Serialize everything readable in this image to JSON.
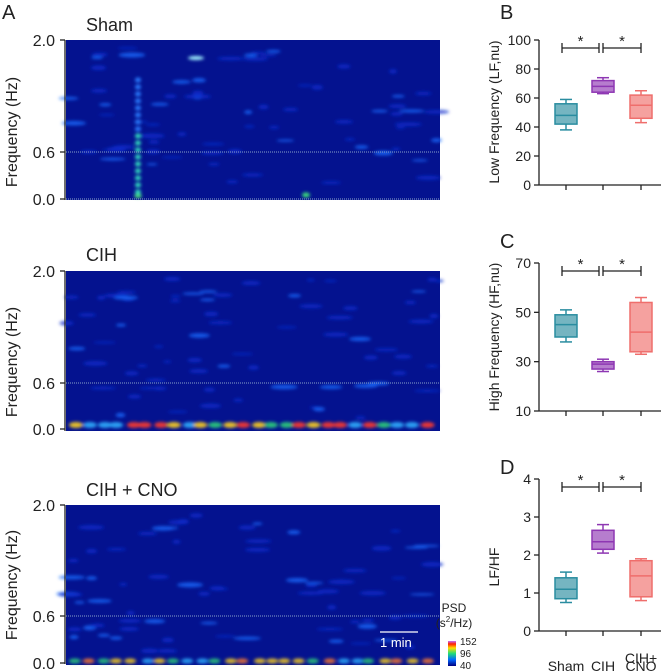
{
  "figure": {
    "panel_letters": [
      "A",
      "B",
      "C",
      "D"
    ]
  },
  "chart_data": [
    {
      "type": "heatmap",
      "panel": "A",
      "title": "Sham",
      "ylabel": "Frequency (Hz)",
      "ytick_labels": [
        "0.0",
        "0.6",
        "2.0"
      ],
      "yticks": [
        0.0,
        0.6,
        2.0
      ],
      "ylim": [
        0.0,
        2.0
      ],
      "reference_line": 0.6,
      "hot_spots": [
        {
          "t": 0.2,
          "f": 0.05,
          "level": "high"
        },
        {
          "t": 0.2,
          "f": 0.45,
          "level": "mid"
        },
        {
          "t": 0.64,
          "f": 0.03,
          "level": "mid"
        }
      ]
    },
    {
      "type": "heatmap",
      "panel": "A",
      "title": "CIH",
      "ylabel": "Frequency (Hz)",
      "ytick_labels": [
        "0.0",
        "0.6",
        "2.0"
      ],
      "yticks": [
        0.0,
        0.6,
        2.0
      ],
      "ylim": [
        0.0,
        2.0
      ],
      "reference_line": 0.6
    },
    {
      "type": "heatmap",
      "panel": "A",
      "title": "CIH + CNO",
      "ylabel": "Frequency (Hz)",
      "ytick_labels": [
        "0.0",
        "0.6",
        "2.0"
      ],
      "yticks": [
        0.0,
        0.6,
        2.0
      ],
      "ylim": [
        0.0,
        2.0
      ],
      "reference_line": 0.6,
      "scale_bar_label": "1 min",
      "colorbar": {
        "title_line1": "PSD",
        "title_line2_prefix": "(s",
        "title_line2_sup": "2",
        "title_line2_suffix": "/Hz)",
        "tick_labels": [
          "152",
          "96",
          "40"
        ],
        "range": [
          40,
          152
        ]
      }
    },
    {
      "type": "box",
      "panel": "B",
      "ylabel": "Low Frequency (LF,nu)",
      "ylim": [
        0,
        100
      ],
      "yticks": [
        0,
        20,
        40,
        60,
        80,
        100
      ],
      "categories": [
        "Sham",
        "CIH",
        "CIH+ CNO"
      ],
      "boxes": [
        {
          "name": "Sham",
          "min": 38,
          "q1": 42,
          "median": 48,
          "q3": 56,
          "max": 59
        },
        {
          "name": "CIH",
          "min": 63,
          "q1": 64,
          "median": 68,
          "q3": 72,
          "max": 74
        },
        {
          "name": "CIH+ CNO",
          "min": 43,
          "q1": 46,
          "median": 55,
          "q3": 62,
          "max": 65
        }
      ],
      "significance": [
        "*",
        "*"
      ]
    },
    {
      "type": "box",
      "panel": "C",
      "ylabel": "High Frequency (HF,nu)",
      "ylim": [
        10,
        70
      ],
      "yticks": [
        10,
        30,
        50,
        70
      ],
      "categories": [
        "Sham",
        "CIH",
        "CIH+ CNO"
      ],
      "boxes": [
        {
          "name": "Sham",
          "min": 38,
          "q1": 40,
          "median": 45,
          "q3": 49,
          "max": 51
        },
        {
          "name": "CIH",
          "min": 26,
          "q1": 27,
          "median": 29,
          "q3": 30,
          "max": 31
        },
        {
          "name": "CIH+ CNO",
          "min": 33,
          "q1": 34,
          "median": 42,
          "q3": 54,
          "max": 56
        }
      ],
      "significance": [
        "*",
        "*"
      ]
    },
    {
      "type": "box",
      "panel": "D",
      "ylabel": "LF/HF",
      "ylim": [
        0,
        4
      ],
      "yticks": [
        0,
        1,
        2,
        3,
        4
      ],
      "categories": [
        "Sham",
        "CIH",
        "CIH+ CNO"
      ],
      "xtick_lines": [
        [
          "Sham"
        ],
        [
          "CIH"
        ],
        [
          "CIH+",
          "CNO"
        ]
      ],
      "boxes": [
        {
          "name": "Sham",
          "min": 0.75,
          "q1": 0.85,
          "median": 1.1,
          "q3": 1.4,
          "max": 1.55
        },
        {
          "name": "CIH",
          "min": 2.05,
          "q1": 2.15,
          "median": 2.35,
          "q3": 2.65,
          "max": 2.8
        },
        {
          "name": "CIH+ CNO",
          "min": 0.8,
          "q1": 0.9,
          "median": 1.45,
          "q3": 1.85,
          "max": 1.9
        }
      ],
      "significance": [
        "*",
        "*"
      ]
    }
  ],
  "colors": {
    "spectrogram_bg": "#04128f",
    "sham": "#2a8da0",
    "cih": "#8e37b3",
    "cih_cno": "#ef6e6c"
  }
}
